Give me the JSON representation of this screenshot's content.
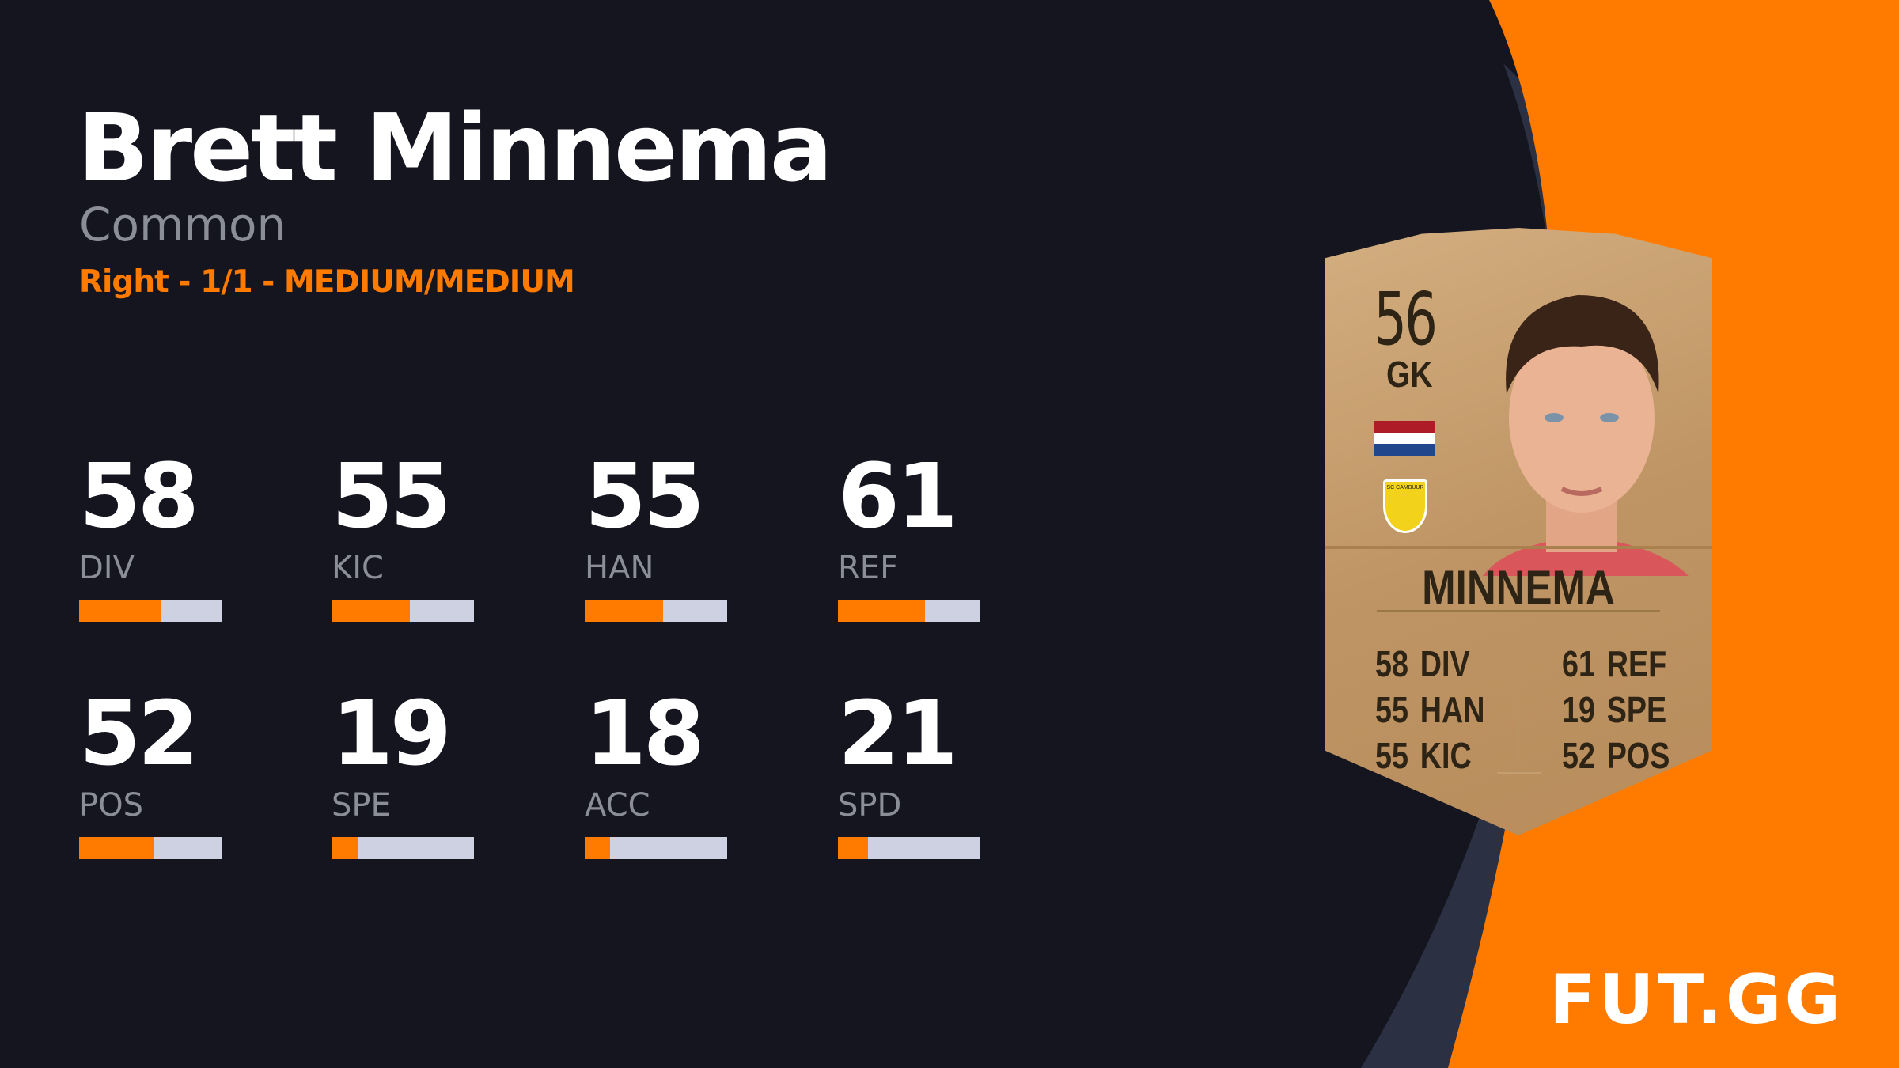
{
  "player": {
    "name": "Brett Minnema",
    "rarity": "Common",
    "meta": "Right - 1/1 - MEDIUM/MEDIUM"
  },
  "stats": [
    {
      "label": "DIV",
      "value": "58",
      "fill": 0.58
    },
    {
      "label": "KIC",
      "value": "55",
      "fill": 0.55
    },
    {
      "label": "HAN",
      "value": "55",
      "fill": 0.55
    },
    {
      "label": "REF",
      "value": "61",
      "fill": 0.61
    },
    {
      "label": "POS",
      "value": "52",
      "fill": 0.52
    },
    {
      "label": "SPE",
      "value": "19",
      "fill": 0.19
    },
    {
      "label": "ACC",
      "value": "18",
      "fill": 0.18
    },
    {
      "label": "SPD",
      "value": "21",
      "fill": 0.21
    }
  ],
  "card": {
    "rating": "56",
    "position": "GK",
    "name": "MINNEMA",
    "club_crest_text": "SC CAMBUUR",
    "left_stats": [
      {
        "v": "58",
        "l": "DIV"
      },
      {
        "v": "55",
        "l": "HAN"
      },
      {
        "v": "55",
        "l": "KIC"
      }
    ],
    "right_stats": [
      {
        "v": "61",
        "l": "REF"
      },
      {
        "v": "19",
        "l": "SPE"
      },
      {
        "v": "52",
        "l": "POS"
      }
    ],
    "flag": "netherlands-flag"
  },
  "brand": {
    "logo": "FUT.GG"
  },
  "colors": {
    "accent": "#ff7b00",
    "background": "#14151f",
    "bar_track": "#cdd1e1",
    "card": "#c29a6b"
  }
}
